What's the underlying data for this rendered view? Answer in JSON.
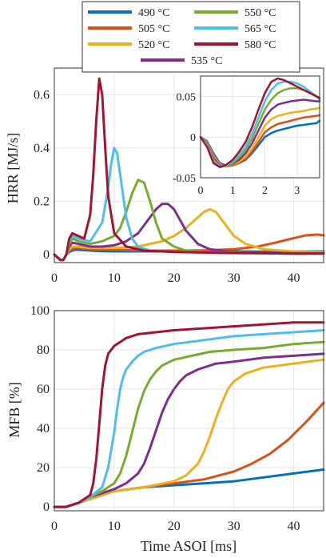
{
  "chart_data": [
    {
      "type": "line",
      "title": "",
      "xlabel": "",
      "ylabel": "HRR [MJ/s]",
      "xlim": [
        0,
        45
      ],
      "ylim": [
        -0.03,
        0.7
      ],
      "xticks": [
        "0",
        "10",
        "20",
        "30",
        "40"
      ],
      "yticks": [
        "0",
        "0.2",
        "0.4",
        "0.6"
      ],
      "grid": true,
      "legend": "top",
      "series": [
        {
          "name": "490 °C",
          "color": "#0072BD",
          "x": [
            0,
            1,
            1.5,
            2,
            2.5,
            3,
            3.5,
            4,
            6,
            8,
            10,
            15,
            20,
            25,
            30,
            35,
            40,
            45
          ],
          "y": [
            0,
            -0.02,
            -0.02,
            0,
            0.01,
            0.015,
            0.018,
            0.018,
            0.015,
            0.013,
            0.012,
            0.012,
            0.012,
            0.012,
            0.012,
            0.011,
            0.012,
            0.012
          ]
        },
        {
          "name": "505 °C",
          "color": "#D95319",
          "x": [
            0,
            1,
            1.5,
            2,
            2.5,
            3,
            3.5,
            4,
            6,
            10,
            15,
            20,
            25,
            30,
            34,
            37,
            40,
            42,
            44,
            45
          ],
          "y": [
            0,
            -0.02,
            -0.02,
            0,
            0.015,
            0.02,
            0.025,
            0.025,
            0.02,
            0.018,
            0.015,
            0.015,
            0.016,
            0.02,
            0.03,
            0.045,
            0.062,
            0.072,
            0.075,
            0.072
          ]
        },
        {
          "name": "520 °C",
          "color": "#EDB120",
          "x": [
            0,
            1,
            1.5,
            2,
            2.5,
            3,
            4,
            6,
            10,
            14,
            18,
            20,
            22,
            24,
            25,
            26,
            27,
            28,
            29,
            30,
            32,
            35,
            40,
            45
          ],
          "y": [
            0,
            -0.02,
            -0.02,
            0,
            0.02,
            0.03,
            0.03,
            0.025,
            0.025,
            0.03,
            0.05,
            0.07,
            0.1,
            0.14,
            0.16,
            0.17,
            0.16,
            0.13,
            0.1,
            0.07,
            0.04,
            0.02,
            0.012,
            0.01
          ]
        },
        {
          "name": "535 °C",
          "color": "#7E2F8E",
          "x": [
            0,
            1,
            1.5,
            2,
            2.5,
            3,
            4,
            6,
            8,
            10,
            12,
            14,
            15,
            16,
            17,
            18,
            19,
            20,
            21,
            22,
            24,
            26,
            30,
            35,
            40,
            45
          ],
          "y": [
            0,
            -0.02,
            -0.02,
            0,
            0.03,
            0.045,
            0.04,
            0.03,
            0.03,
            0.035,
            0.05,
            0.08,
            0.11,
            0.14,
            0.17,
            0.19,
            0.19,
            0.17,
            0.13,
            0.09,
            0.04,
            0.02,
            0.01,
            0.008,
            0.005,
            0.005
          ]
        },
        {
          "name": "550 °C",
          "color": "#77AC30",
          "x": [
            0,
            1,
            1.5,
            2,
            2.5,
            3,
            4,
            6,
            8,
            10,
            11,
            12,
            13,
            14,
            15,
            16,
            17,
            18,
            20,
            22,
            25,
            30,
            35,
            40,
            45
          ],
          "y": [
            0,
            -0.02,
            -0.02,
            0,
            0.04,
            0.06,
            0.05,
            0.04,
            0.05,
            0.07,
            0.1,
            0.16,
            0.23,
            0.28,
            0.27,
            0.2,
            0.12,
            0.06,
            0.03,
            0.015,
            0.01,
            0.008,
            0.005,
            0.004,
            0.004
          ]
        },
        {
          "name": "565 °C",
          "color": "#4DBEEE",
          "x": [
            0,
            1,
            1.5,
            2,
            2.5,
            3,
            4,
            6,
            8,
            9,
            9.5,
            10,
            10.5,
            11,
            12,
            13,
            14,
            16,
            20,
            25,
            30,
            35,
            40,
            45
          ],
          "y": [
            0,
            -0.02,
            -0.02,
            0,
            0.05,
            0.07,
            0.06,
            0.05,
            0.12,
            0.25,
            0.34,
            0.4,
            0.38,
            0.3,
            0.14,
            0.06,
            0.03,
            0.015,
            0.01,
            0.008,
            0.006,
            0.005,
            0.004,
            0.004
          ]
        },
        {
          "name": "580 °C",
          "color": "#A2142F",
          "x": [
            0,
            1,
            1.5,
            2,
            2.5,
            3,
            4,
            5,
            6,
            6.5,
            7,
            7.5,
            8,
            8.5,
            9,
            10,
            12,
            15,
            20,
            25,
            30,
            35,
            40,
            45
          ],
          "y": [
            0,
            -0.02,
            -0.02,
            0,
            0.06,
            0.08,
            0.07,
            0.06,
            0.15,
            0.3,
            0.5,
            0.66,
            0.6,
            0.4,
            0.22,
            0.08,
            0.03,
            0.015,
            0.01,
            0.008,
            0.006,
            0.005,
            0.004,
            0.004
          ]
        }
      ]
    },
    {
      "type": "line",
      "title": "inset",
      "xlim": [
        0,
        3.7
      ],
      "ylim": [
        -0.05,
        0.075
      ],
      "xticks": [
        "0",
        "1",
        "2",
        "3"
      ],
      "yticks": [
        "-0.05",
        "0",
        "0.05"
      ],
      "grid": true,
      "series": [
        {
          "name": "490 °C",
          "x": [
            0,
            0.2,
            0.4,
            0.6,
            0.8,
            1.0,
            1.2,
            1.4,
            1.6,
            1.8,
            2.0,
            2.2,
            2.4,
            2.6,
            2.8,
            3.0,
            3.2,
            3.4,
            3.6,
            3.7
          ],
          "y": [
            0,
            -0.005,
            -0.02,
            -0.032,
            -0.035,
            -0.034,
            -0.032,
            -0.028,
            -0.02,
            -0.01,
            0.0,
            0.005,
            0.008,
            0.01,
            0.012,
            0.014,
            0.015,
            0.016,
            0.017,
            0.02
          ]
        },
        {
          "name": "505 °C",
          "x": [
            0,
            0.2,
            0.4,
            0.6,
            0.8,
            1.0,
            1.2,
            1.4,
            1.6,
            1.8,
            2.0,
            2.2,
            2.4,
            2.6,
            2.8,
            3.0,
            3.2,
            3.4,
            3.6,
            3.7
          ],
          "y": [
            0,
            -0.006,
            -0.022,
            -0.033,
            -0.036,
            -0.035,
            -0.032,
            -0.027,
            -0.018,
            -0.006,
            0.006,
            0.012,
            0.016,
            0.018,
            0.02,
            0.022,
            0.024,
            0.025,
            0.026,
            0.027
          ]
        },
        {
          "name": "520 °C",
          "x": [
            0,
            0.2,
            0.4,
            0.6,
            0.8,
            1.0,
            1.2,
            1.4,
            1.6,
            1.8,
            2.0,
            2.2,
            2.4,
            2.6,
            2.8,
            3.0,
            3.2,
            3.4,
            3.6,
            3.7
          ],
          "y": [
            0,
            -0.007,
            -0.024,
            -0.034,
            -0.036,
            -0.034,
            -0.03,
            -0.024,
            -0.014,
            0.0,
            0.014,
            0.022,
            0.026,
            0.028,
            0.03,
            0.031,
            0.032,
            0.034,
            0.035,
            0.036
          ]
        },
        {
          "name": "535 °C",
          "x": [
            0,
            0.2,
            0.4,
            0.6,
            0.8,
            1.0,
            1.2,
            1.4,
            1.6,
            1.8,
            2.0,
            2.2,
            2.4,
            2.6,
            2.8,
            3.0,
            3.2,
            3.4,
            3.6,
            3.7
          ],
          "y": [
            0,
            -0.008,
            -0.026,
            -0.035,
            -0.036,
            -0.033,
            -0.028,
            -0.02,
            -0.008,
            0.008,
            0.024,
            0.034,
            0.04,
            0.042,
            0.044,
            0.045,
            0.046,
            0.045,
            0.044,
            0.044
          ]
        },
        {
          "name": "550 °C",
          "x": [
            0,
            0.2,
            0.4,
            0.6,
            0.8,
            1.0,
            1.2,
            1.4,
            1.6,
            1.8,
            2.0,
            2.2,
            2.4,
            2.6,
            2.8,
            3.0,
            3.2,
            3.4,
            3.6,
            3.7
          ],
          "y": [
            0,
            -0.009,
            -0.028,
            -0.036,
            -0.036,
            -0.032,
            -0.025,
            -0.016,
            -0.002,
            0.016,
            0.034,
            0.046,
            0.054,
            0.058,
            0.06,
            0.06,
            0.058,
            0.054,
            0.05,
            0.048
          ]
        },
        {
          "name": "565 °C",
          "x": [
            0,
            0.2,
            0.4,
            0.6,
            0.8,
            1.0,
            1.2,
            1.4,
            1.6,
            1.8,
            2.0,
            2.2,
            2.4,
            2.6,
            2.8,
            3.0,
            3.2,
            3.4,
            3.6,
            3.7
          ],
          "y": [
            0,
            -0.01,
            -0.03,
            -0.036,
            -0.035,
            -0.03,
            -0.022,
            -0.012,
            0.004,
            0.024,
            0.044,
            0.058,
            0.066,
            0.068,
            0.068,
            0.066,
            0.062,
            0.056,
            0.05,
            0.046
          ]
        },
        {
          "name": "580 °C",
          "x": [
            0,
            0.2,
            0.4,
            0.6,
            0.8,
            1.0,
            1.2,
            1.4,
            1.6,
            1.8,
            2.0,
            2.2,
            2.4,
            2.6,
            2.8,
            3.0,
            3.2,
            3.4,
            3.6,
            3.7
          ],
          "y": [
            0,
            -0.012,
            -0.032,
            -0.037,
            -0.034,
            -0.028,
            -0.018,
            -0.006,
            0.012,
            0.034,
            0.054,
            0.068,
            0.072,
            0.07,
            0.066,
            0.062,
            0.058,
            0.054,
            0.05,
            0.048
          ]
        }
      ]
    },
    {
      "type": "line",
      "title": "",
      "xlabel": "Time ASOI [ms]",
      "ylabel": "MFB [%]",
      "xlim": [
        0,
        45
      ],
      "ylim": [
        -2,
        100
      ],
      "xticks": [
        "0",
        "10",
        "20",
        "30",
        "40"
      ],
      "yticks": [
        "0",
        "20",
        "40",
        "60",
        "80",
        "100"
      ],
      "grid": true,
      "series": [
        {
          "name": "490 °C",
          "x": [
            0,
            2,
            3,
            4,
            6,
            8,
            10,
            15,
            20,
            25,
            30,
            35,
            40,
            45
          ],
          "y": [
            0,
            0,
            1,
            2,
            4,
            6,
            8,
            10,
            11,
            12,
            13,
            15,
            17,
            19
          ]
        },
        {
          "name": "505 °C",
          "x": [
            0,
            2,
            3,
            4,
            6,
            8,
            10,
            15,
            20,
            25,
            30,
            33,
            36,
            39,
            42,
            45
          ],
          "y": [
            0,
            0,
            1,
            2,
            4,
            6,
            8,
            10,
            12,
            14,
            18,
            22,
            27,
            34,
            43,
            53
          ]
        },
        {
          "name": "520 °C",
          "x": [
            0,
            2,
            3,
            4,
            6,
            8,
            10,
            15,
            20,
            22,
            24,
            25,
            26,
            27,
            28,
            29,
            30,
            32,
            35,
            40,
            45
          ],
          "y": [
            0,
            0,
            1,
            2,
            4,
            6,
            8,
            10,
            13,
            16,
            22,
            28,
            36,
            45,
            53,
            60,
            64,
            68,
            71,
            73,
            75
          ]
        },
        {
          "name": "535 °C",
          "x": [
            0,
            2,
            3,
            4,
            6,
            8,
            10,
            12,
            14,
            15,
            16,
            17,
            18,
            19,
            20,
            21,
            22,
            24,
            27,
            30,
            35,
            40,
            45
          ],
          "y": [
            0,
            0,
            1,
            2,
            5,
            7,
            9,
            12,
            17,
            22,
            30,
            39,
            48,
            55,
            60,
            64,
            67,
            70,
            73,
            74,
            76,
            77,
            78
          ]
        },
        {
          "name": "550 °C",
          "x": [
            0,
            2,
            3,
            4,
            6,
            8,
            10,
            11,
            12,
            13,
            14,
            15,
            16,
            17,
            18,
            20,
            23,
            26,
            30,
            35,
            40,
            45
          ],
          "y": [
            0,
            0,
            1,
            2,
            5,
            8,
            12,
            17,
            26,
            38,
            50,
            59,
            65,
            69,
            72,
            75,
            77,
            79,
            80,
            81,
            83,
            84
          ]
        },
        {
          "name": "565 °C",
          "x": [
            0,
            2,
            3,
            4,
            6,
            8,
            9,
            10,
            10.5,
            11,
            11.5,
            12,
            13,
            14,
            15,
            17,
            20,
            25,
            30,
            35,
            40,
            45
          ],
          "y": [
            0,
            0,
            1,
            2,
            5,
            10,
            20,
            38,
            50,
            60,
            66,
            70,
            74,
            77,
            79,
            81,
            83,
            85,
            87,
            88,
            89,
            90
          ]
        },
        {
          "name": "580 °C",
          "x": [
            0,
            2,
            3,
            4,
            6,
            6.5,
            7,
            7.5,
            8,
            8.5,
            9,
            10,
            11,
            12,
            14,
            17,
            20,
            25,
            30,
            35,
            40,
            45
          ],
          "y": [
            0,
            0,
            1,
            2,
            6,
            12,
            24,
            42,
            60,
            72,
            78,
            82,
            84,
            86,
            88,
            89,
            90,
            91,
            92,
            93,
            94,
            94
          ]
        }
      ]
    }
  ]
}
